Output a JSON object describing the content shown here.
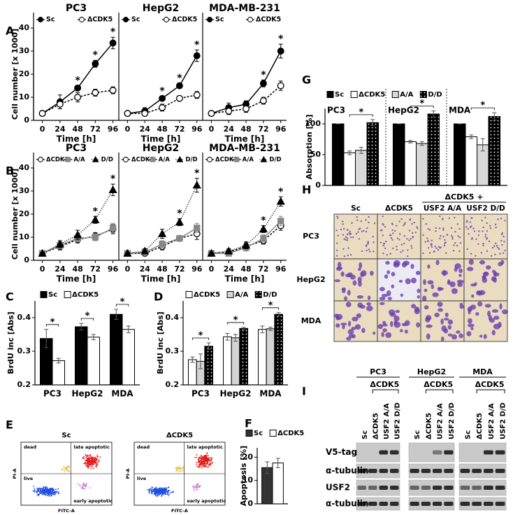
{
  "figure": {
    "panel_letters": [
      "A",
      "B",
      "C",
      "D",
      "E",
      "F",
      "G",
      "H",
      "I"
    ]
  },
  "chart_data": [
    {
      "type": "line",
      "xlabel": "Time [h]",
      "ylabel": "Cell number [x 1000]",
      "x": [
        0,
        24,
        48,
        72,
        96
      ],
      "xlim": [
        -12,
        104
      ],
      "xticks": [
        0,
        24,
        48,
        72,
        96
      ],
      "ylim": [
        0,
        40
      ],
      "yticks": [
        0,
        10,
        20,
        30,
        40
      ],
      "panels": [
        {
          "title": "PC3",
          "series": [
            {
              "name": "Sc",
              "color": "#000000",
              "marker": "circle",
              "fill": "#000000",
              "dash": "none",
              "values": [
                3,
                8,
                14,
                24.5,
                33.5
              ],
              "errors": [
                0.5,
                3,
                1,
                1.5,
                2.5
              ]
            },
            {
              "name": "ΔCDK5",
              "color": "#000000",
              "marker": "circle",
              "fill": "#ffffff",
              "dash": "3,2",
              "values": [
                3,
                7,
                10,
                12,
                13
              ],
              "errors": [
                0.5,
                2,
                2,
                1.5,
                1.5
              ]
            }
          ],
          "annotations": [
            {
              "text": "*",
              "x": 48
            },
            {
              "text": "*",
              "x": 72
            },
            {
              "text": "*",
              "x": 96
            }
          ]
        },
        {
          "title": "HepG2",
          "series": [
            {
              "name": "Sc",
              "color": "#000000",
              "marker": "circle",
              "fill": "#000000",
              "dash": "none",
              "values": [
                3,
                4,
                9.5,
                15,
                28
              ],
              "errors": [
                0.5,
                1.5,
                1,
                1,
                2.5
              ]
            },
            {
              "name": "ΔCDK5",
              "color": "#000000",
              "marker": "circle",
              "fill": "#ffffff",
              "dash": "3,2",
              "values": [
                3,
                3,
                5.5,
                9.5,
                11
              ],
              "errors": [
                0.5,
                1,
                1.5,
                1,
                1.5
              ]
            }
          ],
          "annotations": [
            {
              "text": "*",
              "x": 48
            },
            {
              "text": "*",
              "x": 72
            },
            {
              "text": "*",
              "x": 96
            }
          ]
        },
        {
          "title": "MDA-MB-231",
          "series": [
            {
              "name": "Sc",
              "color": "#000000",
              "marker": "circle",
              "fill": "#000000",
              "dash": "none",
              "values": [
                3,
                5.5,
                7,
                16,
                30
              ],
              "errors": [
                0.5,
                2,
                1.5,
                1.5,
                3
              ]
            },
            {
              "name": "ΔCDK5",
              "color": "#000000",
              "marker": "circle",
              "fill": "#ffffff",
              "dash": "3,2",
              "values": [
                3,
                4,
                5,
                8.5,
                15
              ],
              "errors": [
                0.5,
                1.5,
                1.5,
                1.5,
                2
              ]
            }
          ],
          "annotations": [
            {
              "text": "*",
              "x": 72
            },
            {
              "text": "*",
              "x": 96
            }
          ]
        }
      ]
    },
    {
      "type": "line",
      "xlabel": "Time [h]",
      "ylabel": "Cell number [x 1000]",
      "x": [
        0,
        24,
        48,
        72,
        96
      ],
      "xlim": [
        -12,
        104
      ],
      "xticks": [
        0,
        24,
        48,
        72,
        96
      ],
      "ylim": [
        0,
        40
      ],
      "yticks": [
        0,
        10,
        20,
        30,
        40
      ],
      "panels": [
        {
          "title": "PC3",
          "series": [
            {
              "name": "ΔCDK5",
              "color": "#000000",
              "marker": "circle",
              "fill": "#ffffff",
              "dash": "3,2",
              "values": [
                3,
                6,
                9,
                10.5,
                13.5
              ],
              "errors": [
                0.5,
                1.5,
                1.5,
                1.5,
                2
              ]
            },
            {
              "name": "A/A",
              "color": "#888888",
              "marker": "square",
              "fill": "#888888",
              "dash": "none",
              "values": [
                3,
                6.5,
                9.5,
                10,
                14
              ],
              "errors": [
                0.5,
                1.5,
                1.5,
                1.5,
                2
              ]
            },
            {
              "name": "D/D",
              "color": "#000000",
              "marker": "triangle",
              "fill": "#000000",
              "dash": "1,2",
              "values": [
                3,
                7,
                11,
                17.5,
                30.5
              ],
              "errors": [
                0.5,
                1.5,
                2,
                1.5,
                2.5
              ]
            }
          ],
          "annotations": [
            {
              "text": "*",
              "x": 72
            },
            {
              "text": "*",
              "x": 96
            }
          ]
        },
        {
          "title": "HepG2",
          "series": [
            {
              "name": "ΔCDK5",
              "color": "#000000",
              "marker": "circle",
              "fill": "#ffffff",
              "dash": "3,2",
              "values": [
                3,
                3,
                6,
                9.5,
                11.5
              ],
              "errors": [
                0.5,
                1,
                1.5,
                1,
                2.5
              ]
            },
            {
              "name": "A/A",
              "color": "#888888",
              "marker": "square",
              "fill": "#888888",
              "dash": "none",
              "values": [
                3,
                3.5,
                7,
                9.5,
                14
              ],
              "errors": [
                0.5,
                1,
                1.5,
                1,
                2
              ]
            },
            {
              "name": "D/D",
              "color": "#000000",
              "marker": "triangle",
              "fill": "#000000",
              "dash": "1,2",
              "values": [
                3,
                4,
                11.5,
                16.5,
                32.5
              ],
              "errors": [
                0.5,
                1,
                2,
                1.5,
                3
              ]
            }
          ],
          "annotations": [
            {
              "text": "*",
              "x": 72
            },
            {
              "text": "*",
              "x": 96
            }
          ]
        },
        {
          "title": "MDA-MB-231",
          "series": [
            {
              "name": "ΔCDK5",
              "color": "#000000",
              "marker": "circle",
              "fill": "#ffffff",
              "dash": "3,2",
              "values": [
                3,
                3.5,
                6,
                8.5,
                15
              ],
              "errors": [
                0.5,
                1,
                1.5,
                1.5,
                2
              ]
            },
            {
              "name": "A/A",
              "color": "#888888",
              "marker": "square",
              "fill": "#888888",
              "dash": "none",
              "values": [
                3,
                3,
                5.5,
                9.5,
                17
              ],
              "errors": [
                0.5,
                1,
                1.5,
                1.5,
                2
              ]
            },
            {
              "name": "D/D",
              "color": "#000000",
              "marker": "triangle",
              "fill": "#000000",
              "dash": "1,2",
              "values": [
                3,
                4,
                6.5,
                13.5,
                25.5
              ],
              "errors": [
                0.5,
                1,
                1.5,
                1.5,
                2
              ]
            }
          ],
          "annotations": [
            {
              "text": "*",
              "x": 72
            },
            {
              "text": "*",
              "x": 96
            }
          ]
        }
      ]
    },
    {
      "type": "bar",
      "ylabel": "BrdU inc [Abs]",
      "ylim": [
        0.2,
        0.45
      ],
      "yticks": [
        0.2,
        0.3,
        0.4
      ],
      "categories": [
        "PC3",
        "HepG2",
        "MDA"
      ],
      "series": [
        {
          "name": "Sc",
          "color": "#000000",
          "values": [
            0.338,
            0.373,
            0.41
          ],
          "errors": [
            0.027,
            0.01,
            0.015
          ]
        },
        {
          "name": "ΔCDK5",
          "color": "#ffffff",
          "values": [
            0.272,
            0.342,
            0.365
          ],
          "errors": [
            0.007,
            0.008,
            0.01
          ]
        }
      ],
      "annotations": [
        {
          "text": "*",
          "category": 0
        },
        {
          "text": "*",
          "category": 1
        },
        {
          "text": "*",
          "category": 2
        }
      ]
    },
    {
      "type": "bar",
      "ylabel": "BrdU inc [Abs]",
      "ylim": [
        0.2,
        0.45
      ],
      "yticks": [
        0.2,
        0.3,
        0.4
      ],
      "categories": [
        "PC3",
        "HepG2",
        "MDA"
      ],
      "series": [
        {
          "name": "ΔCDK5",
          "color": "#ffffff",
          "values": [
            0.275,
            0.343,
            0.365
          ],
          "errors": [
            0.008,
            0.01,
            0.01
          ]
        },
        {
          "name": "A/A",
          "color": "#d4d4d4",
          "values": [
            0.27,
            0.34,
            0.367
          ],
          "errors": [
            0.022,
            0.01,
            0.005
          ]
        },
        {
          "name": "D/D",
          "color": "#000000",
          "pattern": "dots",
          "values": [
            0.315,
            0.368,
            0.41
          ],
          "errors": [
            0.01,
            0.003,
            0.005
          ]
        }
      ],
      "annotations": [
        {
          "text": "*",
          "category": 0
        },
        {
          "text": "*",
          "category": 1
        },
        {
          "text": "*",
          "category": 2
        }
      ]
    },
    {
      "type": "bar",
      "ylabel": "Apoptosis [%]",
      "ylim": [
        0,
        24
      ],
      "yticks": [
        0,
        10,
        20
      ],
      "categories": [
        null
      ],
      "series": [
        {
          "name": "Sc",
          "color": "#333333",
          "values": [
            15.5
          ],
          "errors": [
            2.5
          ]
        },
        {
          "name": "ΔCDK5",
          "color": "#ffffff",
          "values": [
            17.5
          ],
          "errors": [
            2
          ]
        }
      ]
    },
    {
      "type": "bar",
      "ylabel": "Absorption [%]",
      "ylim": [
        0,
        125
      ],
      "yticks": [
        0,
        50,
        100
      ],
      "categories": [
        "PC3",
        "HepG2",
        "MDA"
      ],
      "category_labels": "inside",
      "separators": "dashed",
      "series": [
        {
          "name": "Sc",
          "color": "#000000",
          "values": [
            100,
            100,
            100
          ],
          "errors": [
            0,
            0,
            0
          ]
        },
        {
          "name": "ΔCDK5",
          "color": "#ffffff",
          "values": [
            53,
            71,
            79
          ],
          "errors": [
            3,
            2,
            3
          ]
        },
        {
          "name": "A/A",
          "color": "#d9d9d9",
          "values": [
            57,
            68,
            66
          ],
          "errors": [
            5,
            3,
            10
          ]
        },
        {
          "name": "D/D",
          "color": "#000000",
          "pattern": "dots",
          "values": [
            102,
            116,
            112
          ],
          "errors": [
            5,
            5,
            6
          ]
        }
      ],
      "annotations": [
        {
          "text": "*",
          "category": 0,
          "between": [
            1,
            3
          ]
        },
        {
          "text": "*",
          "category": 1,
          "between": [
            1,
            3
          ]
        },
        {
          "text": "*",
          "category": 2,
          "between": [
            1,
            3
          ]
        }
      ]
    }
  ],
  "flow": {
    "titles": [
      "Sc",
      "ΔCDK5"
    ],
    "quadrants": [
      "dead",
      "late apoptotic",
      "live",
      "early apoptotic"
    ],
    "ylabel": "PI-A",
    "xlabel": "FITC-A"
  },
  "microscopy": {
    "group_header": "ΔCDK5 +",
    "columns": [
      "Sc",
      "ΔCDK5",
      "USF2 A/A",
      "USF2 D/D"
    ],
    "rows": [
      "PC3",
      "HepG2",
      "MDA"
    ]
  },
  "blot": {
    "groups": [
      {
        "title": "PC3",
        "subheader": "ΔCDK5",
        "lanes": [
          "Sc",
          "ΔCDK5",
          "USF2 A/A",
          "USF2 D/D"
        ]
      },
      {
        "title": "HepG2",
        "subheader": "ΔCDK5",
        "lanes": [
          "Sc",
          "ΔCDK5",
          "USF2 A/A",
          "USF2 D/D"
        ]
      },
      {
        "title": "MDA",
        "subheader": "ΔCDK5",
        "lanes": [
          "Sc",
          "ΔCDK5",
          "USF2 A/A",
          "USF2 D/D"
        ]
      }
    ],
    "rows": [
      "V5-tag",
      "α-tubulin",
      "USF2",
      "α-tubulin"
    ]
  }
}
